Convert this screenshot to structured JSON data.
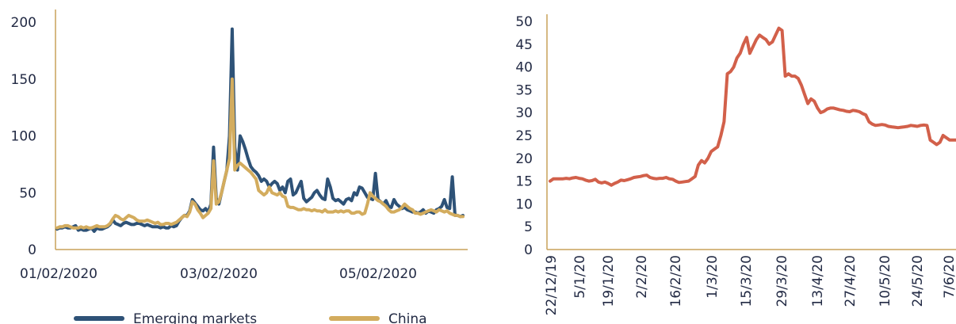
{
  "colors": {
    "emerging": "#2e5277",
    "china": "#d3ac5e",
    "right": "#d2604a",
    "axis": "#c9a25a",
    "text": "#222a44"
  },
  "chart_data": [
    {
      "type": "line",
      "title": "",
      "xlabel": "",
      "ylabel": "",
      "ylim": [
        0,
        200
      ],
      "yticks": [
        "0",
        "50",
        "100",
        "150",
        "200"
      ],
      "xtick_labels": [
        "01/02/2020",
        "03/02/2020",
        "05/02/2020"
      ],
      "legend_position": "bottom",
      "series": [
        {
          "name": "Emerging markets",
          "color": "#2e5277",
          "values": [
            18,
            19,
            19,
            20,
            19,
            19,
            20,
            21,
            17,
            18,
            17,
            17,
            18,
            19,
            16,
            19,
            18,
            18,
            19,
            20,
            22,
            26,
            23,
            22,
            21,
            23,
            24,
            23,
            22,
            22,
            23,
            23,
            22,
            21,
            22,
            21,
            20,
            20,
            20,
            19,
            20,
            19,
            19,
            21,
            20,
            21,
            25,
            28,
            30,
            30,
            34,
            44,
            41,
            38,
            35,
            34,
            36,
            33,
            40,
            90,
            45,
            40,
            50,
            60,
            70,
            100,
            194,
            90,
            70,
            100,
            95,
            88,
            80,
            73,
            70,
            68,
            65,
            60,
            62,
            60,
            55,
            58,
            60,
            58,
            52,
            55,
            50,
            60,
            62,
            48,
            50,
            55,
            60,
            45,
            42,
            44,
            46,
            50,
            52,
            48,
            45,
            44,
            62,
            55,
            45,
            43,
            44,
            42,
            40,
            44,
            45,
            43,
            50,
            48,
            55,
            54,
            50,
            46,
            45,
            44,
            67,
            44,
            42,
            40,
            43,
            38,
            37,
            44,
            40,
            38,
            36,
            37,
            35,
            34,
            33,
            33,
            32,
            33,
            35,
            32,
            34,
            33,
            32,
            35,
            36,
            38,
            44,
            37,
            36,
            64,
            30,
            30,
            29,
            30
          ]
        },
        {
          "name": "China",
          "color": "#d3ac5e",
          "values": [
            19,
            20,
            20,
            21,
            21,
            20,
            19,
            19,
            19,
            20,
            19,
            20,
            19,
            19,
            20,
            21,
            20,
            20,
            20,
            21,
            23,
            27,
            30,
            29,
            27,
            26,
            28,
            30,
            29,
            28,
            26,
            25,
            25,
            25,
            26,
            25,
            24,
            23,
            24,
            22,
            22,
            23,
            23,
            22,
            23,
            24,
            26,
            28,
            30,
            29,
            33,
            42,
            40,
            35,
            32,
            28,
            30,
            32,
            36,
            78,
            40,
            42,
            50,
            60,
            70,
            80,
            150,
            70,
            74,
            76,
            74,
            72,
            70,
            68,
            65,
            62,
            52,
            50,
            48,
            50,
            55,
            50,
            49,
            48,
            50,
            47,
            46,
            38,
            37,
            37,
            36,
            35,
            35,
            36,
            35,
            35,
            34,
            35,
            34,
            34,
            33,
            35,
            33,
            33,
            33,
            34,
            33,
            34,
            33,
            34,
            34,
            32,
            32,
            33,
            33,
            31,
            32,
            40,
            50,
            47,
            45,
            43,
            42,
            40,
            38,
            35,
            33,
            33,
            34,
            35,
            37,
            40,
            38,
            36,
            35,
            32,
            32,
            31,
            32,
            33,
            34,
            35,
            34,
            33,
            35,
            34,
            33,
            34,
            32,
            31,
            30,
            30,
            29,
            29
          ]
        }
      ]
    },
    {
      "type": "line",
      "title": "",
      "xlabel": "",
      "ylabel": "",
      "ylim": [
        0,
        50
      ],
      "yticks": [
        "0",
        "5",
        "10",
        "15",
        "20",
        "25",
        "30",
        "35",
        "40",
        "45",
        "50"
      ],
      "xtick_labels": [
        "22/12/19",
        "5/1/20",
        "19/1/20",
        "2/2/20",
        "16/2/20",
        "1/3/20",
        "15/3/20",
        "29/3/20",
        "13/4/20",
        "27/4/20",
        "10/5/20",
        "24/5/20",
        "7/6/20"
      ],
      "series": [
        {
          "color": "#d2604a",
          "values": [
            15,
            15.5,
            15.5,
            15.5,
            15.5,
            15.6,
            15.5,
            15.7,
            15.8,
            15.6,
            15.5,
            15.2,
            15,
            15.1,
            15.4,
            14.8,
            14.6,
            14.8,
            14.5,
            14.1,
            14.5,
            14.8,
            15.2,
            15.1,
            15.3,
            15.5,
            15.8,
            15.9,
            16.0,
            16.2,
            16.3,
            15.8,
            15.6,
            15.5,
            15.6,
            15.6,
            15.8,
            15.5,
            15.4,
            15.0,
            14.7,
            14.8,
            14.9,
            15.0,
            15.5,
            16.0,
            18.5,
            19.5,
            19.0,
            20.0,
            21.5,
            22.0,
            22.5,
            25.0,
            28.0,
            38.5,
            39.0,
            40.0,
            42.0,
            43.0,
            45.0,
            46.5,
            43.0,
            44.5,
            46.0,
            47.0,
            46.5,
            46.0,
            45.0,
            45.5,
            47.0,
            48.5,
            48.0,
            38.0,
            38.5,
            38.0,
            38.0,
            37.5,
            36.0,
            34.0,
            32.0,
            33.0,
            32.5,
            31.0,
            30.0,
            30.3,
            30.8,
            31.0,
            31.0,
            30.8,
            30.6,
            30.5,
            30.3,
            30.2,
            30.5,
            30.4,
            30.2,
            29.8,
            29.5,
            28.0,
            27.5,
            27.2,
            27.3,
            27.4,
            27.3,
            27.0,
            26.9,
            26.8,
            26.7,
            26.8,
            26.9,
            27.0,
            27.2,
            27.1,
            27.0,
            27.2,
            27.3,
            27.2,
            24.0,
            23.5,
            23.0,
            23.5,
            25.0,
            24.5,
            24.0,
            24.0,
            24.0
          ]
        }
      ]
    }
  ]
}
